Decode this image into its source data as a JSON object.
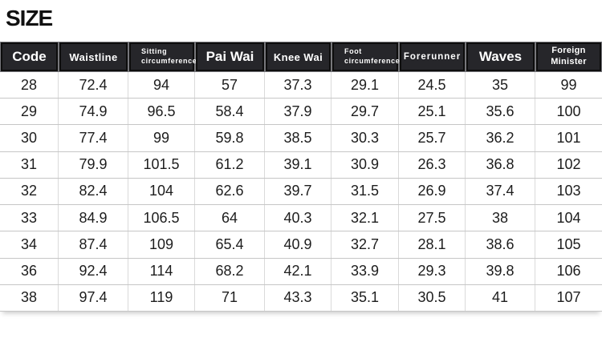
{
  "page": {
    "title": "SIZE"
  },
  "colors": {
    "header_bg": "#26262a",
    "header_border": "#0d0d0d",
    "header_gap": "#77777b",
    "header_text": "#ffffff",
    "row_line_h": "#c6c6c6",
    "row_line_v": "#dadada",
    "cell_text": "#1d1d1d",
    "title_color": "#111111"
  },
  "chart_data": {
    "type": "table",
    "title": "SIZE",
    "columns": [
      {
        "id": "code",
        "label": "Code",
        "emphasis": "lg"
      },
      {
        "id": "waistline",
        "label": "Waistline",
        "emphasis": "md"
      },
      {
        "id": "sitting-circumference",
        "label": "Sitting circumference",
        "lines": [
          "Sitting",
          "circumference"
        ],
        "emphasis": "xs",
        "align": "left"
      },
      {
        "id": "pai-wai",
        "label": "Pai Wai",
        "emphasis": "lg"
      },
      {
        "id": "knee-wai",
        "label": "Knee Wai",
        "emphasis": "md"
      },
      {
        "id": "foot-circumference",
        "label": "Foot circumference",
        "lines": [
          "Foot",
          "circumference"
        ],
        "emphasis": "xs",
        "align": "left"
      },
      {
        "id": "forerunner",
        "label": "Forerunner",
        "emphasis": "sm"
      },
      {
        "id": "waves",
        "label": "Waves",
        "emphasis": "lg"
      },
      {
        "id": "foreign-minister",
        "label": "Foreign Minister",
        "lines": [
          "Foreign",
          "Minister"
        ],
        "emphasis": "sm2"
      }
    ],
    "rows": [
      [
        "28",
        "72.4",
        "94",
        "57",
        "37.3",
        "29.1",
        "24.5",
        "35",
        "99"
      ],
      [
        "29",
        "74.9",
        "96.5",
        "58.4",
        "37.9",
        "29.7",
        "25.1",
        "35.6",
        "100"
      ],
      [
        "30",
        "77.4",
        "99",
        "59.8",
        "38.5",
        "30.3",
        "25.7",
        "36.2",
        "101"
      ],
      [
        "31",
        "79.9",
        "101.5",
        "61.2",
        "39.1",
        "30.9",
        "26.3",
        "36.8",
        "102"
      ],
      [
        "32",
        "82.4",
        "104",
        "62.6",
        "39.7",
        "31.5",
        "26.9",
        "37.4",
        "103"
      ],
      [
        "33",
        "84.9",
        "106.5",
        "64",
        "40.3",
        "32.1",
        "27.5",
        "38",
        "104"
      ],
      [
        "34",
        "87.4",
        "109",
        "65.4",
        "40.9",
        "32.7",
        "28.1",
        "38.6",
        "105"
      ],
      [
        "36",
        "92.4",
        "114",
        "68.2",
        "42.1",
        "33.9",
        "29.3",
        "39.8",
        "106"
      ],
      [
        "38",
        "97.4",
        "119",
        "71",
        "43.3",
        "35.1",
        "30.5",
        "41",
        "107"
      ]
    ]
  }
}
